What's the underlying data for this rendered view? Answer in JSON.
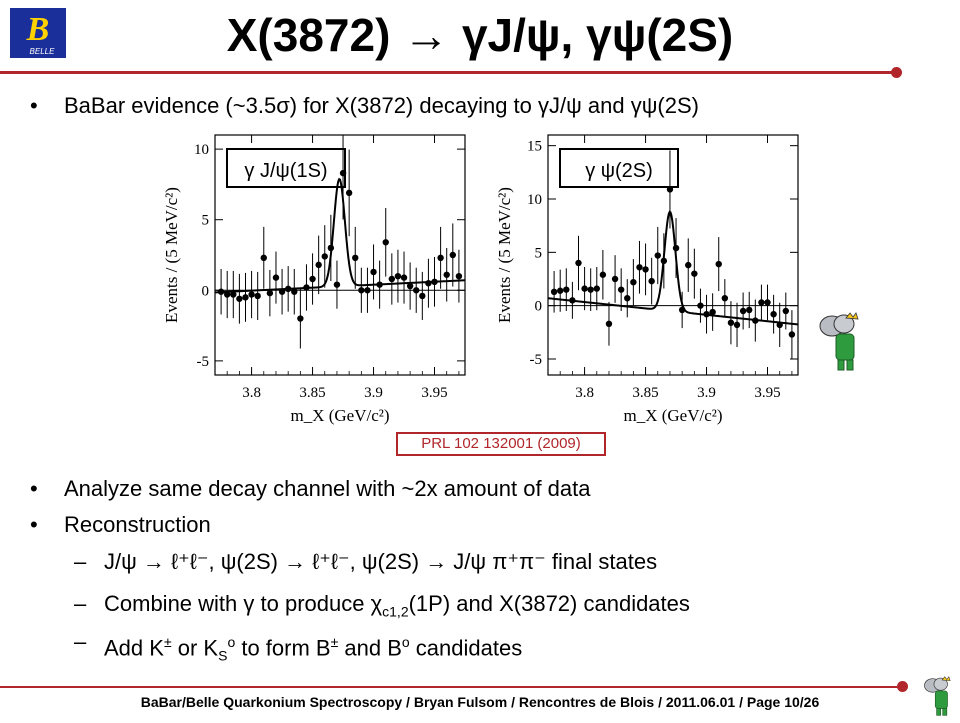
{
  "title": "X(3872) → γJ/ψ, γψ(2S)",
  "logo": {
    "letter": "B",
    "text": "BELLE",
    "icon": "belle-logo-icon"
  },
  "bullets": {
    "b1": "BaBar evidence (~3.5σ) for X(3872) decaying to γJ/ψ and γψ(2S)",
    "b2": "Analyze same decay channel with ~2x amount of data",
    "b3": "Reconstruction",
    "s1": "J/ψ → ℓ⁺ℓ⁻, ψ(2S) → ℓ⁺ℓ⁻, ψ(2S) → J/ψ π⁺π⁻ final states",
    "s2a": "Combine with γ to produce χ",
    "s2sub": "c1,2",
    "s2b": "(1P) and X(3872) candidates",
    "s3a": "Add K",
    "s3sup": "±",
    "s3b": " or K",
    "s3sub": "S",
    "s3sup2": "o",
    "s3c": " to form B",
    "s3sup3": "±",
    "s3d": " and B",
    "s3sup4": "o",
    "s3e": " candidates",
    "bullet_char": "•",
    "dash_char": "–"
  },
  "reference": "PRL 102 132001 (2009)",
  "footer": "BaBar/Belle Quarkonium Spectroscopy  /  Bryan Fulsom  /  Rencontres de Blois  /  2011.06.01  /  Page 10/26",
  "colors": {
    "accent": "#b0262a",
    "logo_blue": "#1a2f9a"
  },
  "chart_data": [
    {
      "type": "scatter",
      "title": "γ J/ψ(1S)",
      "xlabel": "m_X (GeV/c²)",
      "ylabel": "Events / (5 MeV/c²)",
      "xlim": [
        3.77,
        3.975
      ],
      "ylim": [
        -6,
        11
      ],
      "xticks": [
        "3.8",
        "3.85",
        "3.9",
        "3.95"
      ],
      "xtick_values": [
        3.8,
        3.85,
        3.9,
        3.95
      ],
      "yticks": [
        "-5",
        "0",
        "5",
        "10"
      ],
      "ytick_values": [
        -5,
        0,
        5,
        10
      ],
      "x": [
        3.775,
        3.78,
        3.785,
        3.79,
        3.795,
        3.8,
        3.805,
        3.81,
        3.815,
        3.82,
        3.825,
        3.83,
        3.835,
        3.84,
        3.845,
        3.85,
        3.855,
        3.86,
        3.865,
        3.87,
        3.875,
        3.88,
        3.885,
        3.89,
        3.895,
        3.9,
        3.905,
        3.91,
        3.915,
        3.92,
        3.925,
        3.93,
        3.935,
        3.94,
        3.945,
        3.95,
        3.955,
        3.96,
        3.965,
        3.97
      ],
      "y": [
        -0.1,
        -0.3,
        -0.3,
        -0.6,
        -0.5,
        -0.3,
        -0.4,
        2.3,
        -0.2,
        0.9,
        -0.1,
        0.1,
        -0.1,
        -2.0,
        0.2,
        0.8,
        1.8,
        2.4,
        3.0,
        0.4,
        8.3,
        6.9,
        2.3,
        0.0,
        0.0,
        1.3,
        0.4,
        3.4,
        0.8,
        1.0,
        0.9,
        0.3,
        0.0,
        -0.4,
        0.5,
        0.6,
        2.3,
        1.1,
        2.5,
        1.0
      ],
      "fit": {
        "kind": "linear_plus_gaussian",
        "b0": -0.15,
        "b1_per_gev": 4.2,
        "peak_x": 3.872,
        "peak_height": 7.6,
        "sigma": 0.0045
      }
    },
    {
      "type": "scatter",
      "title": "γ ψ(2S)",
      "xlabel": "m_X (GeV/c²)",
      "ylabel": "Events / (5 MeV/c²)",
      "xlim": [
        3.77,
        3.975
      ],
      "ylim": [
        -6.5,
        16
      ],
      "xticks": [
        "3.8",
        "3.85",
        "3.9",
        "3.95"
      ],
      "xtick_values": [
        3.8,
        3.85,
        3.9,
        3.95
      ],
      "yticks": [
        "-5",
        "0",
        "5",
        "10",
        "15"
      ],
      "ytick_values": [
        -5,
        0,
        5,
        10,
        15
      ],
      "x": [
        3.775,
        3.78,
        3.785,
        3.79,
        3.795,
        3.8,
        3.805,
        3.81,
        3.815,
        3.82,
        3.825,
        3.83,
        3.835,
        3.84,
        3.845,
        3.85,
        3.855,
        3.86,
        3.865,
        3.87,
        3.875,
        3.88,
        3.885,
        3.89,
        3.895,
        3.9,
        3.905,
        3.91,
        3.915,
        3.92,
        3.925,
        3.93,
        3.935,
        3.94,
        3.945,
        3.95,
        3.955,
        3.96,
        3.965,
        3.97
      ],
      "y": [
        1.3,
        1.4,
        1.5,
        0.5,
        4.0,
        1.6,
        1.5,
        1.6,
        2.9,
        -1.7,
        2.5,
        1.5,
        0.7,
        2.2,
        3.6,
        3.4,
        2.3,
        4.7,
        4.2,
        10.9,
        5.4,
        -0.4,
        3.8,
        3.0,
        0.0,
        -0.8,
        -0.6,
        3.9,
        0.7,
        -1.6,
        -1.8,
        -0.5,
        -0.4,
        -1.4,
        0.3,
        0.3,
        -0.8,
        -1.8,
        -0.5,
        -2.7
      ],
      "fit": {
        "kind": "linear_plus_gaussian",
        "b0": 0.7,
        "b1_per_gev": -12.0,
        "peak_x": 3.87,
        "peak_height": 9.3,
        "sigma": 0.0045
      }
    }
  ]
}
